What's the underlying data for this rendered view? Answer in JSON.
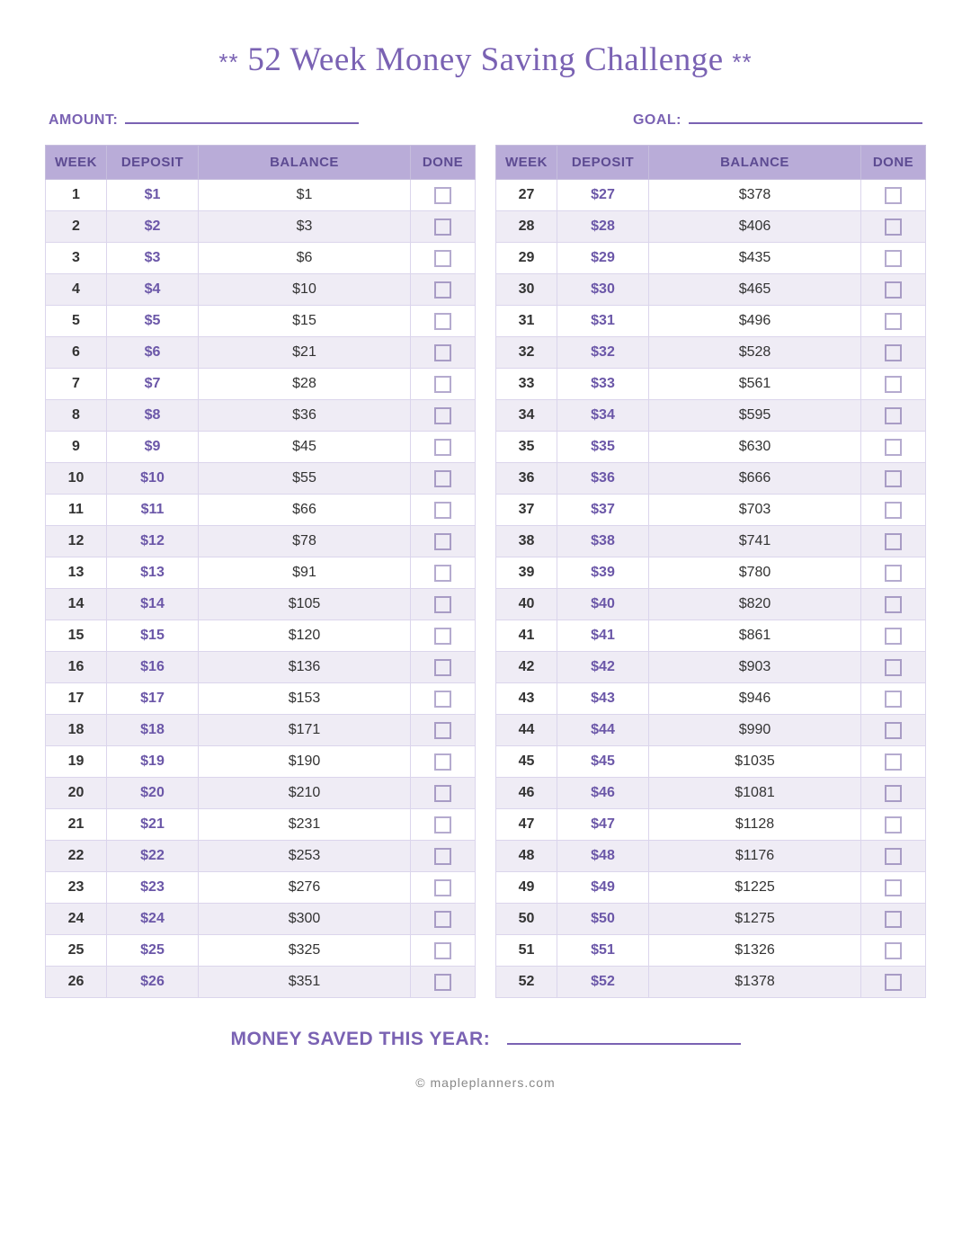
{
  "title": "52 Week Money Saving Challenge",
  "title_decor": "**",
  "fields": {
    "amount_label": "AMOUNT:",
    "goal_label": "GOAL:"
  },
  "columns": [
    "WEEK",
    "DEPOSIT",
    "BALANCE",
    "DONE"
  ],
  "summary_label": "MONEY SAVED THIS YEAR:",
  "footer": "© mapleplanners.com",
  "colors": {
    "accent": "#7a62b3",
    "header_bg": "#b9acd8",
    "header_text": "#5d4b92",
    "row_alt": "#efecf5",
    "border": "#c6bedd",
    "deposit_text": "#6b57a8",
    "checkbox_border": "#b5abcf"
  },
  "left_table": [
    {
      "week": "1",
      "deposit": "$1",
      "balance": "$1"
    },
    {
      "week": "2",
      "deposit": "$2",
      "balance": "$3"
    },
    {
      "week": "3",
      "deposit": "$3",
      "balance": "$6"
    },
    {
      "week": "4",
      "deposit": "$4",
      "balance": "$10"
    },
    {
      "week": "5",
      "deposit": "$5",
      "balance": "$15"
    },
    {
      "week": "6",
      "deposit": "$6",
      "balance": "$21"
    },
    {
      "week": "7",
      "deposit": "$7",
      "balance": "$28"
    },
    {
      "week": "8",
      "deposit": "$8",
      "balance": "$36"
    },
    {
      "week": "9",
      "deposit": "$9",
      "balance": "$45"
    },
    {
      "week": "10",
      "deposit": "$10",
      "balance": "$55"
    },
    {
      "week": "11",
      "deposit": "$11",
      "balance": "$66"
    },
    {
      "week": "12",
      "deposit": "$12",
      "balance": "$78"
    },
    {
      "week": "13",
      "deposit": "$13",
      "balance": "$91"
    },
    {
      "week": "14",
      "deposit": "$14",
      "balance": "$105"
    },
    {
      "week": "15",
      "deposit": "$15",
      "balance": "$120"
    },
    {
      "week": "16",
      "deposit": "$16",
      "balance": "$136"
    },
    {
      "week": "17",
      "deposit": "$17",
      "balance": "$153"
    },
    {
      "week": "18",
      "deposit": "$18",
      "balance": "$171"
    },
    {
      "week": "19",
      "deposit": "$19",
      "balance": "$190"
    },
    {
      "week": "20",
      "deposit": "$20",
      "balance": "$210"
    },
    {
      "week": "21",
      "deposit": "$21",
      "balance": "$231"
    },
    {
      "week": "22",
      "deposit": "$22",
      "balance": "$253"
    },
    {
      "week": "23",
      "deposit": "$23",
      "balance": "$276"
    },
    {
      "week": "24",
      "deposit": "$24",
      "balance": "$300"
    },
    {
      "week": "25",
      "deposit": "$25",
      "balance": "$325"
    },
    {
      "week": "26",
      "deposit": "$26",
      "balance": "$351"
    }
  ],
  "right_table": [
    {
      "week": "27",
      "deposit": "$27",
      "balance": "$378"
    },
    {
      "week": "28",
      "deposit": "$28",
      "balance": "$406"
    },
    {
      "week": "29",
      "deposit": "$29",
      "balance": "$435"
    },
    {
      "week": "30",
      "deposit": "$30",
      "balance": "$465"
    },
    {
      "week": "31",
      "deposit": "$31",
      "balance": "$496"
    },
    {
      "week": "32",
      "deposit": "$32",
      "balance": "$528"
    },
    {
      "week": "33",
      "deposit": "$33",
      "balance": "$561"
    },
    {
      "week": "34",
      "deposit": "$34",
      "balance": "$595"
    },
    {
      "week": "35",
      "deposit": "$35",
      "balance": "$630"
    },
    {
      "week": "36",
      "deposit": "$36",
      "balance": "$666"
    },
    {
      "week": "37",
      "deposit": "$37",
      "balance": "$703"
    },
    {
      "week": "38",
      "deposit": "$38",
      "balance": "$741"
    },
    {
      "week": "39",
      "deposit": "$39",
      "balance": "$780"
    },
    {
      "week": "40",
      "deposit": "$40",
      "balance": "$820"
    },
    {
      "week": "41",
      "deposit": "$41",
      "balance": "$861"
    },
    {
      "week": "42",
      "deposit": "$42",
      "balance": "$903"
    },
    {
      "week": "43",
      "deposit": "$43",
      "balance": "$946"
    },
    {
      "week": "44",
      "deposit": "$44",
      "balance": "$990"
    },
    {
      "week": "45",
      "deposit": "$45",
      "balance": "$1035"
    },
    {
      "week": "46",
      "deposit": "$46",
      "balance": "$1081"
    },
    {
      "week": "47",
      "deposit": "$47",
      "balance": "$1128"
    },
    {
      "week": "48",
      "deposit": "$48",
      "balance": "$1176"
    },
    {
      "week": "49",
      "deposit": "$49",
      "balance": "$1225"
    },
    {
      "week": "50",
      "deposit": "$50",
      "balance": "$1275"
    },
    {
      "week": "51",
      "deposit": "$51",
      "balance": "$1326"
    },
    {
      "week": "52",
      "deposit": "$52",
      "balance": "$1378"
    }
  ]
}
